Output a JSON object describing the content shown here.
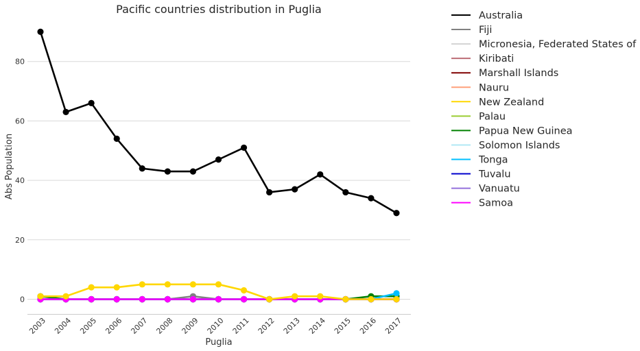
{
  "chart_data": {
    "type": "line",
    "title": "Pacific countries distribution in Puglia",
    "xlabel": "Puglia",
    "ylabel": "Abs Population",
    "x": [
      "2003",
      "2004",
      "2005",
      "2006",
      "2007",
      "2008",
      "2009",
      "2010",
      "2011",
      "2012",
      "2013",
      "2014",
      "2015",
      "2016",
      "2017"
    ],
    "ylim": [
      -5,
      95
    ],
    "yticks": [
      0,
      20,
      40,
      60,
      80
    ],
    "grid": "horizontal",
    "legend_position": "outside-right",
    "series": [
      {
        "name": "Australia",
        "color": "#000000",
        "values": [
          90,
          63,
          66,
          54,
          44,
          43,
          43,
          47,
          51,
          36,
          37,
          42,
          36,
          34,
          29
        ]
      },
      {
        "name": "Fiji",
        "color": "#808080",
        "values": [
          0,
          0,
          0,
          0,
          0,
          0,
          1,
          0,
          0,
          0,
          0,
          0,
          0,
          0,
          0
        ]
      },
      {
        "name": "Micronesia, Federated States of",
        "color": "#d3d3d3",
        "values": [
          0,
          0,
          0,
          0,
          0,
          0,
          0,
          0,
          0,
          0,
          0,
          0,
          0,
          0,
          0
        ]
      },
      {
        "name": "Kiribati",
        "color": "#bc6c74",
        "values": [
          0,
          0,
          0,
          0,
          0,
          0,
          0,
          0,
          0,
          0,
          0,
          0,
          0,
          0,
          0
        ]
      },
      {
        "name": "Marshall Islands",
        "color": "#800000",
        "values": [
          0,
          0,
          0,
          0,
          0,
          0,
          0,
          0,
          0,
          0,
          0,
          0,
          0,
          0,
          0
        ]
      },
      {
        "name": "Nauru",
        "color": "#ffa07a",
        "values": [
          0,
          0,
          0,
          0,
          0,
          0,
          0,
          0,
          0,
          0,
          0,
          0,
          0,
          0,
          0
        ]
      },
      {
        "name": "New Zealand",
        "color": "#ffd700",
        "values": [
          1,
          1,
          4,
          4,
          5,
          5,
          5,
          5,
          3,
          0,
          1,
          1,
          0,
          0,
          0
        ]
      },
      {
        "name": "Palau",
        "color": "#9acd32",
        "values": [
          0,
          0,
          0,
          0,
          0,
          0,
          0,
          0,
          0,
          0,
          0,
          0,
          0,
          0,
          0
        ]
      },
      {
        "name": "Papua New Guinea",
        "color": "#008000",
        "values": [
          1,
          0,
          0,
          0,
          0,
          0,
          0,
          0,
          0,
          0,
          0,
          0,
          0,
          1,
          1
        ]
      },
      {
        "name": "Solomon Islands",
        "color": "#b0e8f5",
        "values": [
          0,
          0,
          0,
          0,
          0,
          0,
          0,
          0,
          0,
          0,
          0,
          0,
          0,
          0,
          0
        ]
      },
      {
        "name": "Tonga",
        "color": "#00bfff",
        "values": [
          0,
          0,
          0,
          0,
          0,
          0,
          0,
          0,
          0,
          0,
          0,
          0,
          0,
          0,
          2
        ]
      },
      {
        "name": "Tuvalu",
        "color": "#0000cd",
        "values": [
          0,
          0,
          0,
          0,
          0,
          0,
          0,
          0,
          0,
          0,
          0,
          0,
          0,
          0,
          0
        ]
      },
      {
        "name": "Vanuatu",
        "color": "#9370db",
        "values": [
          0,
          0,
          0,
          0,
          0,
          0,
          0,
          0,
          0,
          0,
          0,
          0,
          0,
          0,
          0
        ]
      },
      {
        "name": "Samoa",
        "color": "#ff00ff",
        "values": [
          0,
          0,
          0,
          0,
          0,
          0,
          0,
          0,
          0,
          0,
          0,
          0,
          0,
          0,
          0
        ]
      }
    ]
  }
}
